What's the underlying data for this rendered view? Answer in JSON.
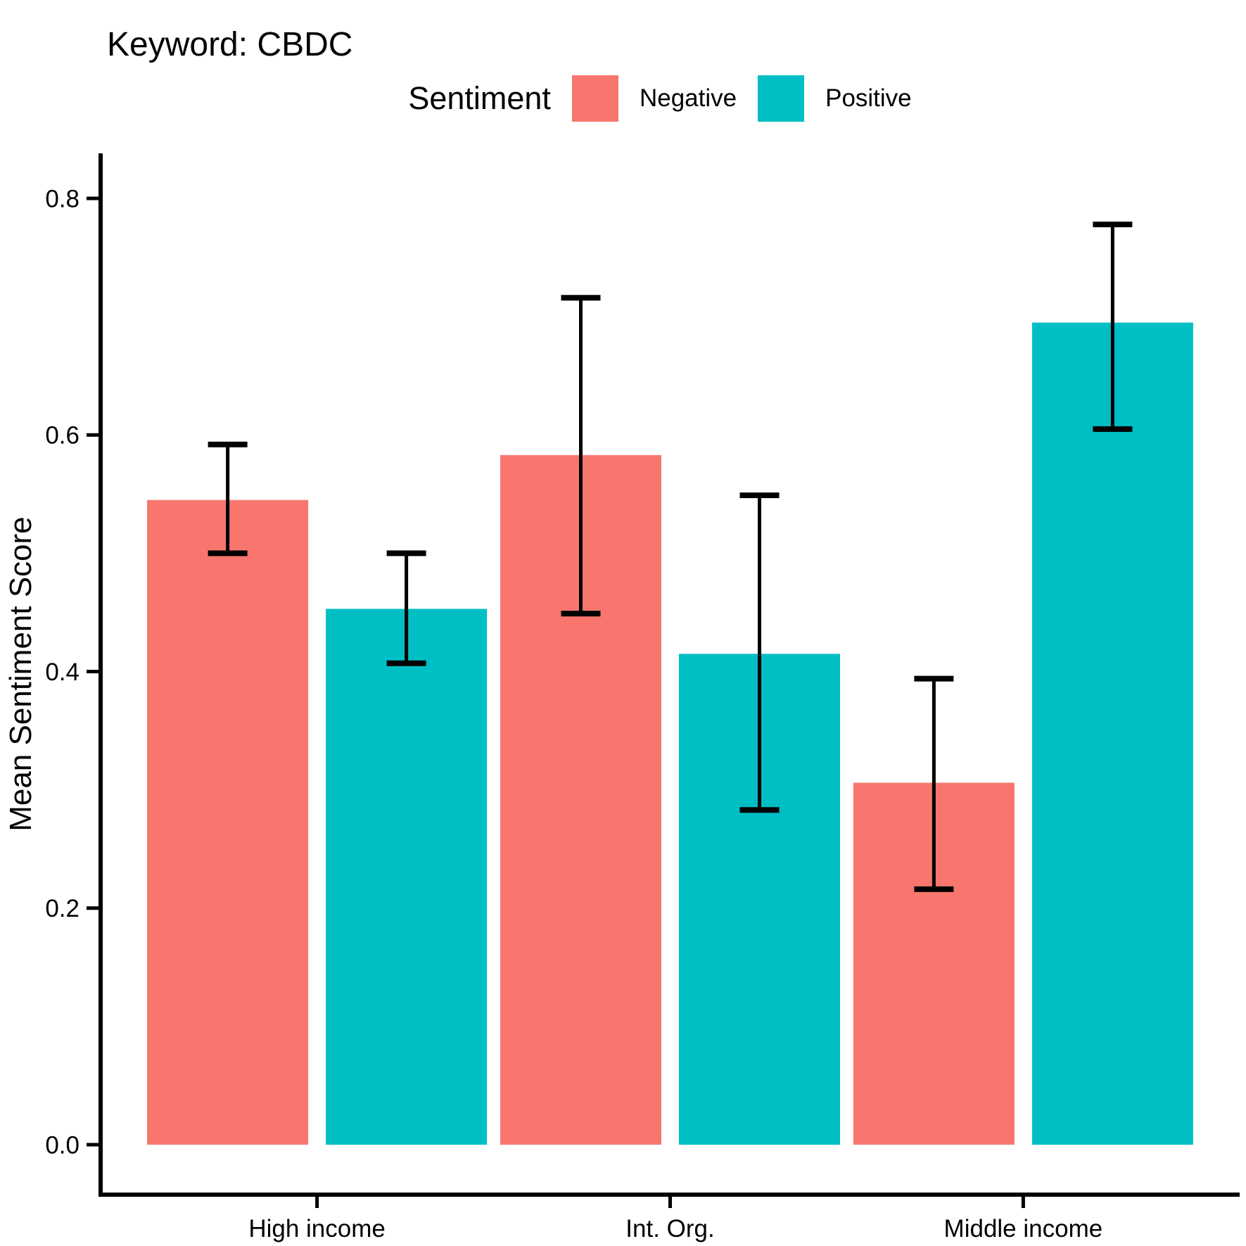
{
  "title": "Keyword: CBDC",
  "legend": {
    "title": "Sentiment",
    "items": [
      {
        "label": "Negative",
        "color": "#F8766D"
      },
      {
        "label": "Positive",
        "color": "#00BFC4"
      }
    ]
  },
  "chart_data": {
    "type": "bar",
    "title": "Keyword: CBDC",
    "xlabel": "",
    "ylabel": "Mean Sentiment Score",
    "categories": [
      "High income",
      "Int. Org.",
      "Middle income"
    ],
    "series": [
      {
        "name": "Negative",
        "color": "#F8766D",
        "values": [
          0.545,
          0.583,
          0.306
        ],
        "error_low": [
          0.5,
          0.449,
          0.216
        ],
        "error_high": [
          0.592,
          0.716,
          0.394
        ]
      },
      {
        "name": "Positive",
        "color": "#00BFC4",
        "values": [
          0.453,
          0.415,
          0.695
        ],
        "error_low": [
          0.407,
          0.283,
          0.605
        ],
        "error_high": [
          0.5,
          0.549,
          0.778
        ]
      }
    ],
    "ylim": [
      0.0,
      0.8
    ],
    "yticks": [
      0.0,
      0.2,
      0.4,
      0.6,
      0.8
    ],
    "ytick_format_decimals": 1,
    "grid": false,
    "legend_position": "top",
    "error_bars": true,
    "axis_color": "#000000",
    "text_color": "#000000"
  }
}
